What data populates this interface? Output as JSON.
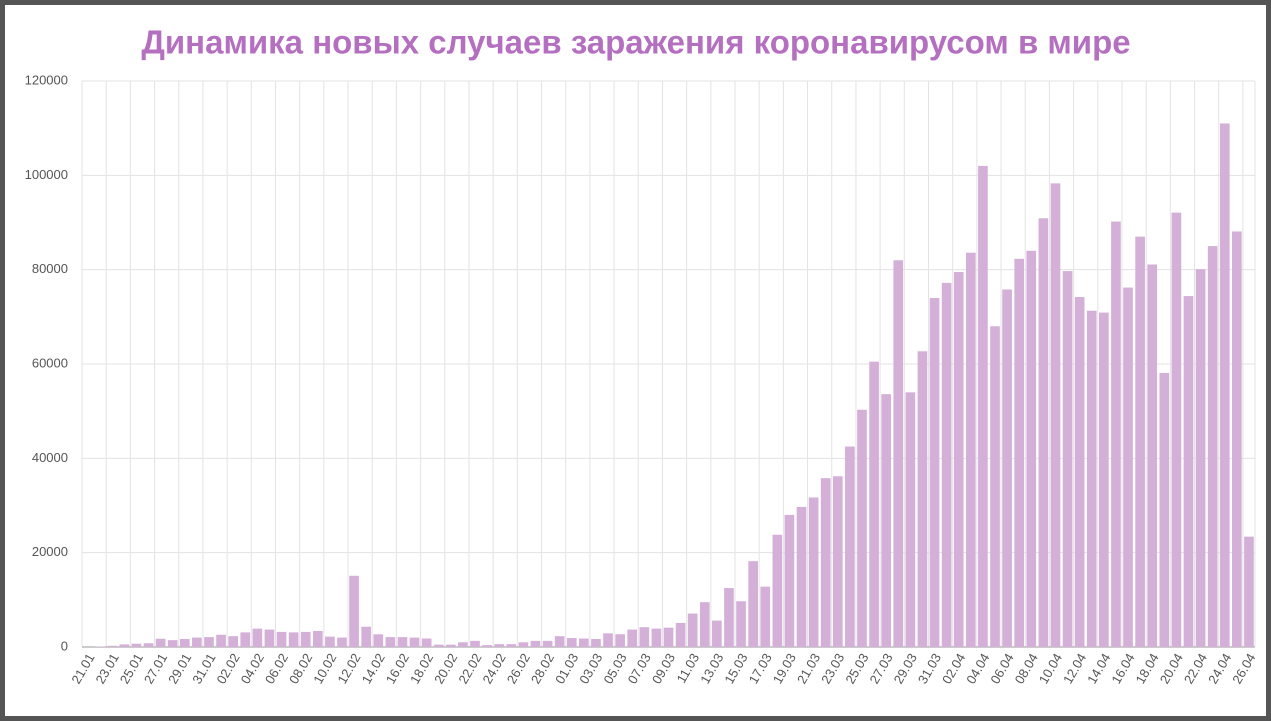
{
  "chart_data": {
    "type": "bar",
    "title": "Динамика новых случаев заражения коронавирусом в мире",
    "categories": [
      "21.01",
      null,
      "23.01",
      null,
      "25.01",
      null,
      "27.01",
      null,
      "29.01",
      null,
      "31.01",
      null,
      "02.02",
      null,
      "04.02",
      null,
      "06.02",
      null,
      "08.02",
      null,
      "10.02",
      null,
      "12.02",
      null,
      "14.02",
      null,
      "16.02",
      null,
      "18.02",
      null,
      "20.02",
      null,
      "22.02",
      null,
      "24.02",
      null,
      "26.02",
      null,
      "28.02",
      null,
      "01.03",
      null,
      "03.03",
      null,
      "05.03",
      null,
      "07.03",
      null,
      "09.03",
      null,
      "11.03",
      null,
      "13.03",
      null,
      "15.03",
      null,
      "17.03",
      null,
      "19.03",
      null,
      "21.03",
      null,
      "23.03",
      null,
      "25.03",
      null,
      "27.03",
      null,
      "29.03",
      null,
      "31.03",
      null,
      "02.04",
      null,
      "04.04",
      null,
      "06.04",
      null,
      "08.04",
      null,
      "10.04",
      null,
      "12.04",
      null,
      "14.04",
      null,
      "16.04",
      null,
      "18.04",
      null,
      "20.04",
      null,
      "22.04",
      null,
      "24.04",
      null,
      "26.04"
    ],
    "values": [
      0,
      100,
      250,
      550,
      700,
      800,
      1750,
      1450,
      1700,
      2000,
      2100,
      2600,
      2300,
      3100,
      3900,
      3700,
      3200,
      3100,
      3200,
      3400,
      2200,
      2000,
      15100,
      4300,
      2700,
      2100,
      2100,
      2000,
      1800,
      500,
      500,
      1000,
      1300,
      400,
      600,
      600,
      1000,
      1300,
      1300,
      2300,
      1900,
      1800,
      1700,
      2900,
      2700,
      3700,
      4200,
      3900,
      4100,
      5100,
      7100,
      9500,
      5600,
      12500,
      9700,
      18200,
      12800,
      23800,
      28000,
      29700,
      31700,
      35800,
      36200,
      42500,
      50300,
      60500,
      53600,
      82000,
      54000,
      62700,
      74000,
      77200,
      79500,
      83600,
      102000,
      68000,
      75800,
      82300,
      84000,
      90900,
      98300,
      79700,
      74200,
      71300,
      70900,
      90200,
      76200,
      87000,
      81100,
      58100,
      92100,
      74400,
      80100,
      85000,
      111000,
      88100,
      23400
    ],
    "color": "#d4b0d8",
    "ylim": [
      0,
      120000
    ],
    "yticks": [
      0,
      20000,
      40000,
      60000,
      80000,
      100000,
      120000
    ],
    "grid": true
  }
}
